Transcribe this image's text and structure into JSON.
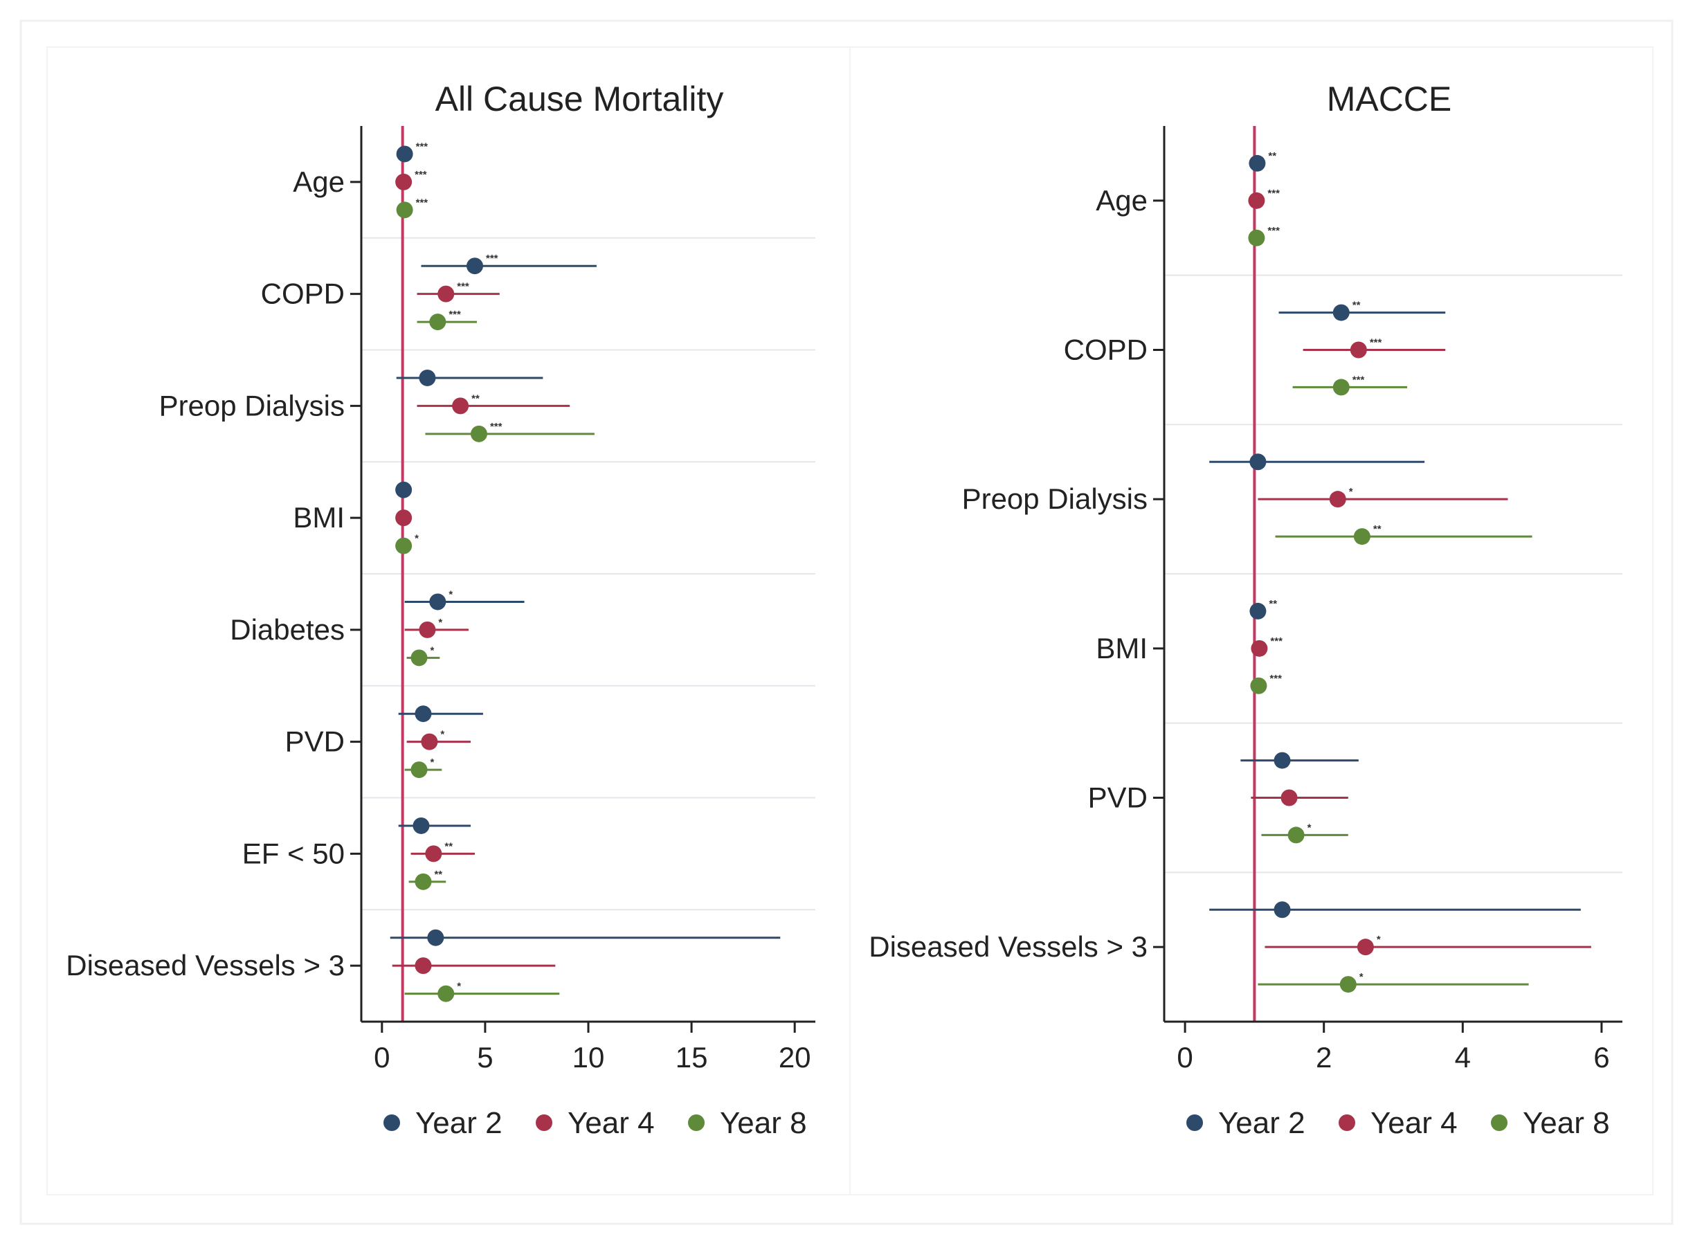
{
  "colors": {
    "year2": "#2e4a6b",
    "year4": "#a8324a",
    "year8": "#5f8a3a",
    "reference": "#c23a62",
    "axis": "#222222",
    "separator": "#e3e7eb"
  },
  "chart_data": [
    {
      "type": "scatter",
      "subtype": "forest-plot",
      "title": "All Cause Mortality",
      "xlabel": "",
      "ylabel": "",
      "xlim": [
        -1,
        21
      ],
      "xticks": [
        0,
        5,
        10,
        15,
        20
      ],
      "reference_line": 1,
      "grid": false,
      "legend_position": "bottom",
      "series_names": [
        "Year 2",
        "Year 4",
        "Year 8"
      ],
      "categories": [
        {
          "label": "Age",
          "points": [
            {
              "series": "Year 2",
              "est": 1.1,
              "lo": 1.05,
              "hi": 1.15,
              "sig": "***"
            },
            {
              "series": "Year 4",
              "est": 1.05,
              "lo": 1.0,
              "hi": 1.1,
              "sig": "***"
            },
            {
              "series": "Year 8",
              "est": 1.1,
              "lo": 1.05,
              "hi": 1.15,
              "sig": "***"
            }
          ]
        },
        {
          "label": "COPD",
          "points": [
            {
              "series": "Year 2",
              "est": 4.5,
              "lo": 1.9,
              "hi": 10.4,
              "sig": "***"
            },
            {
              "series": "Year 4",
              "est": 3.1,
              "lo": 1.7,
              "hi": 5.7,
              "sig": "***"
            },
            {
              "series": "Year 8",
              "est": 2.7,
              "lo": 1.7,
              "hi": 4.6,
              "sig": "***"
            }
          ]
        },
        {
          "label": "Preop Dialysis",
          "points": [
            {
              "series": "Year 2",
              "est": 2.2,
              "lo": 0.7,
              "hi": 7.8,
              "sig": ""
            },
            {
              "series": "Year 4",
              "est": 3.8,
              "lo": 1.7,
              "hi": 9.1,
              "sig": "**"
            },
            {
              "series": "Year 8",
              "est": 4.7,
              "lo": 2.1,
              "hi": 10.3,
              "sig": "***"
            }
          ]
        },
        {
          "label": "BMI",
          "points": [
            {
              "series": "Year 2",
              "est": 1.05,
              "lo": 1.0,
              "hi": 1.1,
              "sig": ""
            },
            {
              "series": "Year 4",
              "est": 1.05,
              "lo": 1.0,
              "hi": 1.1,
              "sig": ""
            },
            {
              "series": "Year 8",
              "est": 1.05,
              "lo": 1.0,
              "hi": 1.1,
              "sig": "*"
            }
          ]
        },
        {
          "label": "Diabetes",
          "points": [
            {
              "series": "Year 2",
              "est": 2.7,
              "lo": 1.1,
              "hi": 6.9,
              "sig": "*"
            },
            {
              "series": "Year 4",
              "est": 2.2,
              "lo": 1.1,
              "hi": 4.2,
              "sig": "*"
            },
            {
              "series": "Year 8",
              "est": 1.8,
              "lo": 1.2,
              "hi": 2.8,
              "sig": "*"
            }
          ]
        },
        {
          "label": "PVD",
          "points": [
            {
              "series": "Year 2",
              "est": 2.0,
              "lo": 0.8,
              "hi": 4.9,
              "sig": ""
            },
            {
              "series": "Year 4",
              "est": 2.3,
              "lo": 1.2,
              "hi": 4.3,
              "sig": "*"
            },
            {
              "series": "Year 8",
              "est": 1.8,
              "lo": 1.1,
              "hi": 2.9,
              "sig": "*"
            }
          ]
        },
        {
          "label": "EF < 50",
          "points": [
            {
              "series": "Year 2",
              "est": 1.9,
              "lo": 0.8,
              "hi": 4.3,
              "sig": ""
            },
            {
              "series": "Year 4",
              "est": 2.5,
              "lo": 1.4,
              "hi": 4.5,
              "sig": "**"
            },
            {
              "series": "Year 8",
              "est": 2.0,
              "lo": 1.3,
              "hi": 3.1,
              "sig": "**"
            }
          ]
        },
        {
          "label": "Diseased Vessels > 3",
          "points": [
            {
              "series": "Year 2",
              "est": 2.6,
              "lo": 0.4,
              "hi": 19.3,
              "sig": ""
            },
            {
              "series": "Year 4",
              "est": 2.0,
              "lo": 0.5,
              "hi": 8.4,
              "sig": ""
            },
            {
              "series": "Year 8",
              "est": 3.1,
              "lo": 1.1,
              "hi": 8.6,
              "sig": "*"
            }
          ]
        }
      ]
    },
    {
      "type": "scatter",
      "subtype": "forest-plot",
      "title": "MACCE",
      "xlabel": "",
      "ylabel": "",
      "xlim": [
        -0.3,
        6.3
      ],
      "xticks": [
        0,
        2,
        4,
        6
      ],
      "reference_line": 1,
      "grid": false,
      "legend_position": "bottom",
      "series_names": [
        "Year 2",
        "Year 4",
        "Year 8"
      ],
      "categories": [
        {
          "label": "Age",
          "points": [
            {
              "series": "Year 2",
              "est": 1.04,
              "lo": 1.0,
              "hi": 1.08,
              "sig": "**"
            },
            {
              "series": "Year 4",
              "est": 1.03,
              "lo": 1.0,
              "hi": 1.06,
              "sig": "***"
            },
            {
              "series": "Year 8",
              "est": 1.03,
              "lo": 1.0,
              "hi": 1.06,
              "sig": "***"
            }
          ]
        },
        {
          "label": "COPD",
          "points": [
            {
              "series": "Year 2",
              "est": 2.25,
              "lo": 1.35,
              "hi": 3.75,
              "sig": "**"
            },
            {
              "series": "Year 4",
              "est": 2.5,
              "lo": 1.7,
              "hi": 3.75,
              "sig": "***"
            },
            {
              "series": "Year 8",
              "est": 2.25,
              "lo": 1.55,
              "hi": 3.2,
              "sig": "***"
            }
          ]
        },
        {
          "label": "Preop Dialysis",
          "points": [
            {
              "series": "Year 2",
              "est": 1.05,
              "lo": 0.35,
              "hi": 3.45,
              "sig": ""
            },
            {
              "series": "Year 4",
              "est": 2.2,
              "lo": 1.05,
              "hi": 4.65,
              "sig": "*"
            },
            {
              "series": "Year 8",
              "est": 2.55,
              "lo": 1.3,
              "hi": 5.0,
              "sig": "**"
            }
          ]
        },
        {
          "label": "BMI",
          "points": [
            {
              "series": "Year 2",
              "est": 1.05,
              "lo": 1.02,
              "hi": 1.08,
              "sig": "**"
            },
            {
              "series": "Year 4",
              "est": 1.07,
              "lo": 1.03,
              "hi": 1.11,
              "sig": "***"
            },
            {
              "series": "Year 8",
              "est": 1.06,
              "lo": 1.03,
              "hi": 1.09,
              "sig": "***"
            }
          ]
        },
        {
          "label": "PVD",
          "points": [
            {
              "series": "Year 2",
              "est": 1.4,
              "lo": 0.8,
              "hi": 2.5,
              "sig": ""
            },
            {
              "series": "Year 4",
              "est": 1.5,
              "lo": 0.95,
              "hi": 2.35,
              "sig": ""
            },
            {
              "series": "Year 8",
              "est": 1.6,
              "lo": 1.1,
              "hi": 2.35,
              "sig": "*"
            }
          ]
        },
        {
          "label": "Diseased Vessels > 3",
          "points": [
            {
              "series": "Year 2",
              "est": 1.4,
              "lo": 0.35,
              "hi": 5.7,
              "sig": ""
            },
            {
              "series": "Year 4",
              "est": 2.6,
              "lo": 1.15,
              "hi": 5.85,
              "sig": "*"
            },
            {
              "series": "Year 8",
              "est": 2.35,
              "lo": 1.05,
              "hi": 4.95,
              "sig": "*"
            }
          ]
        }
      ]
    }
  ],
  "legend": {
    "items": [
      {
        "label": "Year 2",
        "color_key": "year2"
      },
      {
        "label": "Year 4",
        "color_key": "year4"
      },
      {
        "label": "Year 8",
        "color_key": "year8"
      }
    ]
  }
}
